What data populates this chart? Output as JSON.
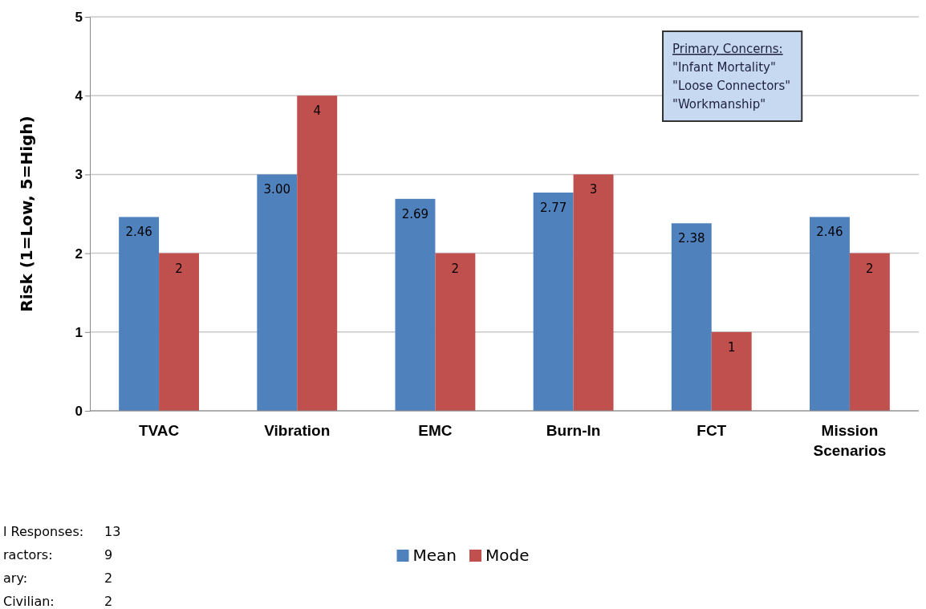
{
  "chart_data": {
    "type": "bar",
    "ylabel": "Risk (1=Low, 5=High)",
    "categories": [
      "TVAC",
      "Vibration",
      "EMC",
      "Burn-In",
      "FCT",
      "Mission Scenarios"
    ],
    "series": [
      {
        "name": "Mean",
        "color": "#4f81bd",
        "values": [
          2.46,
          3.0,
          2.69,
          2.77,
          2.38,
          2.46
        ],
        "value_labels": [
          "2.46",
          "3.00",
          "2.69",
          "2.77",
          "2.38",
          "2.46"
        ]
      },
      {
        "name": "Mode",
        "color": "#c0504d",
        "values": [
          2,
          4,
          2,
          3,
          1,
          2
        ],
        "value_labels": [
          "2",
          "4",
          "2",
          "3",
          "1",
          "2"
        ]
      }
    ],
    "ylim": [
      0,
      5
    ],
    "yticks": [
      0,
      1,
      2,
      3,
      4,
      5
    ],
    "grid": "y",
    "legend": "bottom",
    "annotations": [
      "Primary Concerns:\n\"Infant Mortality\"\n\"Loose Connectors\"\n\"Workmanship\"",
      "l Responses:\t13\nractors:\t9\nary:\t2\nCivilian:\t2"
    ]
  }
}
